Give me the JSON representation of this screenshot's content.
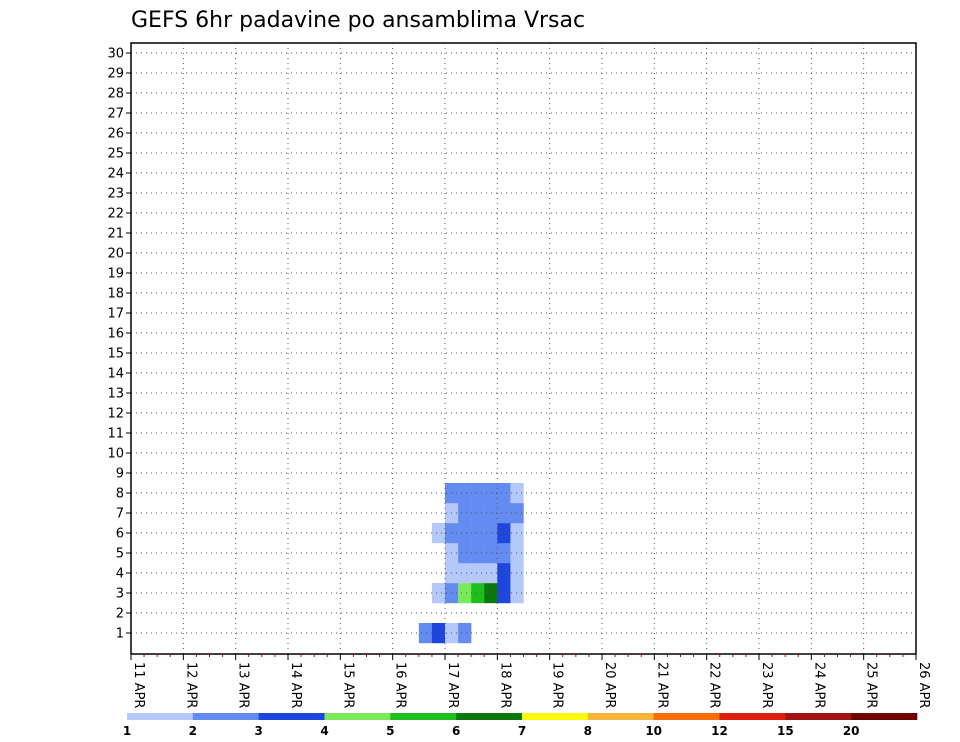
{
  "chart_data": {
    "type": "heatmap",
    "title": "GEFS 6hr padavine po ansamblima Vrsac",
    "xlabel": "",
    "ylabel": "",
    "x_ticks": [
      "11 APR",
      "12 APR",
      "13 APR",
      "14 APR",
      "15 APR",
      "16 APR",
      "17 APR",
      "18 APR",
      "19 APR",
      "20 APR",
      "21 APR",
      "22 APR",
      "23 APR",
      "24 APR",
      "25 APR",
      "26 APR"
    ],
    "y_ticks": [
      1,
      2,
      3,
      4,
      5,
      6,
      7,
      8,
      9,
      10,
      11,
      12,
      13,
      14,
      15,
      16,
      17,
      18,
      19,
      20,
      21,
      22,
      23,
      24,
      25,
      26,
      27,
      28,
      29,
      30
    ],
    "x_start": "2025-04-11 00:00",
    "step_hours": 6,
    "steps": 60,
    "grid": true,
    "colorbar": {
      "labels": [
        "1",
        "2",
        "3",
        "4",
        "5",
        "6",
        "7",
        "8",
        "10",
        "12",
        "15",
        "20"
      ],
      "colors": [
        "#b4c8fa",
        "#648cf0",
        "#1e46dc",
        "#7aea5a",
        "#1ebe1e",
        "#0a780a",
        "#fafa0a",
        "#fab43c",
        "#fa6e0a",
        "#dc1e0a",
        "#a01414",
        "#6e0000"
      ]
    },
    "cell_values_mm_thresholds_note": "",
    "cells": [
      [
        1,
        22,
        2
      ],
      [
        1,
        23,
        3
      ],
      [
        1,
        24,
        1
      ],
      [
        1,
        25,
        2
      ],
      [
        3,
        23,
        1
      ],
      [
        3,
        24,
        2
      ],
      [
        3,
        25,
        4
      ],
      [
        3,
        26,
        5
      ],
      [
        3,
        27,
        6
      ],
      [
        3,
        28,
        3
      ],
      [
        3,
        29,
        1
      ],
      [
        4,
        24,
        1
      ],
      [
        4,
        25,
        1
      ],
      [
        4,
        26,
        1
      ],
      [
        4,
        27,
        1
      ],
      [
        4,
        28,
        3
      ],
      [
        4,
        29,
        1
      ],
      [
        5,
        24,
        1
      ],
      [
        5,
        25,
        2
      ],
      [
        5,
        26,
        2
      ],
      [
        5,
        27,
        2
      ],
      [
        5,
        28,
        2
      ],
      [
        5,
        29,
        1
      ],
      [
        6,
        23,
        1
      ],
      [
        6,
        24,
        2
      ],
      [
        6,
        25,
        2
      ],
      [
        6,
        26,
        2
      ],
      [
        6,
        27,
        2
      ],
      [
        6,
        28,
        3
      ],
      [
        6,
        29,
        1
      ],
      [
        7,
        24,
        1
      ],
      [
        7,
        25,
        2
      ],
      [
        7,
        26,
        2
      ],
      [
        7,
        27,
        2
      ],
      [
        7,
        28,
        2
      ],
      [
        7,
        29,
        2
      ],
      [
        8,
        24,
        2
      ],
      [
        8,
        25,
        2
      ],
      [
        8,
        26,
        2
      ],
      [
        8,
        27,
        2
      ],
      [
        8,
        28,
        2
      ],
      [
        8,
        29,
        1
      ]
    ]
  }
}
